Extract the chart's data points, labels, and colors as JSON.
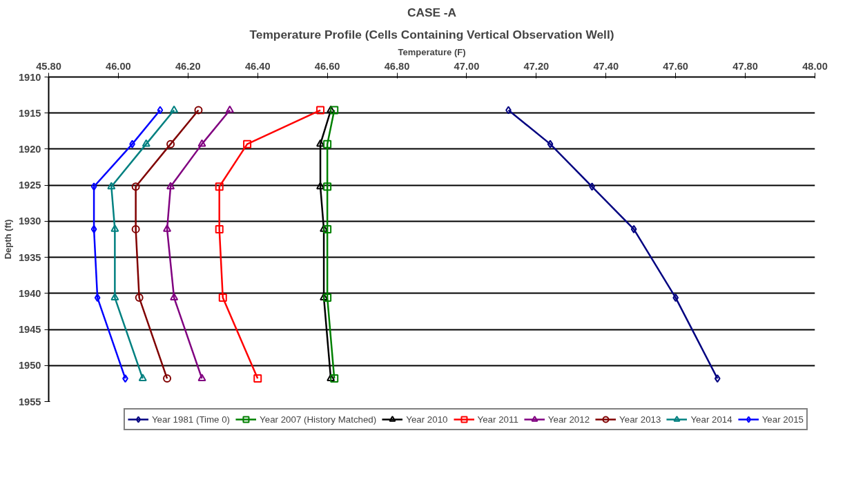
{
  "chart_data": {
    "type": "line",
    "title": "CASE -A",
    "subtitle": "Temperature Profile (Cells Containing Vertical Observation Well)",
    "xlabel": "Temperature (F)",
    "ylabel": "Depth (ft)",
    "xlim": [
      45.8,
      48.0
    ],
    "xticks": [
      {
        "value": 45.8,
        "label": "45.80"
      },
      {
        "value": 46.0,
        "label": "46.00"
      },
      {
        "value": 46.2,
        "label": "46.20"
      },
      {
        "value": 46.4,
        "label": "46.40"
      },
      {
        "value": 46.6,
        "label": "46.60"
      },
      {
        "value": 46.8,
        "label": "46.80"
      },
      {
        "value": 47.0,
        "label": "47.00"
      },
      {
        "value": 47.2,
        "label": "47.20"
      },
      {
        "value": 47.4,
        "label": "47.40"
      },
      {
        "value": 47.6,
        "label": "47.60"
      },
      {
        "value": 47.8,
        "label": "47.80"
      },
      {
        "value": 48.0,
        "label": "48.00"
      }
    ],
    "ylim": [
      1955,
      1910
    ],
    "yticks": [
      1910,
      1915,
      1920,
      1925,
      1930,
      1935,
      1940,
      1945,
      1950,
      1955
    ],
    "grid": "y",
    "legend": "bottom",
    "line_style": "solid",
    "series": [
      {
        "name": "Year 1981 (Time 0)",
        "color": "#000080",
        "marker": "diamond",
        "x": [
          47.12,
          47.24,
          47.36,
          47.48,
          47.6,
          47.72
        ],
        "values": [
          1914.6,
          1919.3,
          1925.2,
          1931.1,
          1940.6,
          1951.8
        ]
      },
      {
        "name": "Year 2007 (History Matched)",
        "color": "#008000",
        "marker": "square",
        "x": [
          46.62,
          46.6,
          46.6,
          46.6,
          46.6,
          46.62
        ],
        "values": [
          1914.6,
          1919.3,
          1925.2,
          1931.1,
          1940.6,
          1951.8
        ]
      },
      {
        "name": "Year 2010",
        "color": "#000000",
        "marker": "triangle",
        "x": [
          46.61,
          46.58,
          46.58,
          46.59,
          46.59,
          46.61
        ],
        "values": [
          1914.6,
          1919.3,
          1925.2,
          1931.1,
          1940.6,
          1951.8
        ]
      },
      {
        "name": "Year 2011",
        "color": "#ff0000",
        "marker": "square",
        "x": [
          46.58,
          46.37,
          46.29,
          46.29,
          46.3,
          46.4
        ],
        "values": [
          1914.6,
          1919.3,
          1925.2,
          1931.1,
          1940.6,
          1951.8
        ]
      },
      {
        "name": "Year 2012",
        "color": "#800080",
        "marker": "triangle",
        "x": [
          46.32,
          46.24,
          46.15,
          46.14,
          46.16,
          46.24
        ],
        "values": [
          1914.6,
          1919.3,
          1925.2,
          1931.1,
          1940.6,
          1951.8
        ]
      },
      {
        "name": "Year 2013",
        "color": "#800000",
        "marker": "circle",
        "x": [
          46.23,
          46.15,
          46.05,
          46.05,
          46.06,
          46.14
        ],
        "values": [
          1914.6,
          1919.3,
          1925.2,
          1931.1,
          1940.6,
          1951.8
        ]
      },
      {
        "name": "Year 2014",
        "color": "#008080",
        "marker": "triangle",
        "x": [
          46.16,
          46.08,
          45.98,
          45.99,
          45.99,
          46.07
        ],
        "values": [
          1914.6,
          1919.3,
          1925.2,
          1931.1,
          1940.6,
          1951.8
        ]
      },
      {
        "name": "Year 2015",
        "color": "#0000ff",
        "marker": "diamond",
        "x": [
          46.12,
          46.04,
          45.93,
          45.93,
          45.94,
          46.02
        ],
        "values": [
          1914.6,
          1919.3,
          1925.2,
          1931.1,
          1940.6,
          1951.8
        ]
      }
    ]
  }
}
